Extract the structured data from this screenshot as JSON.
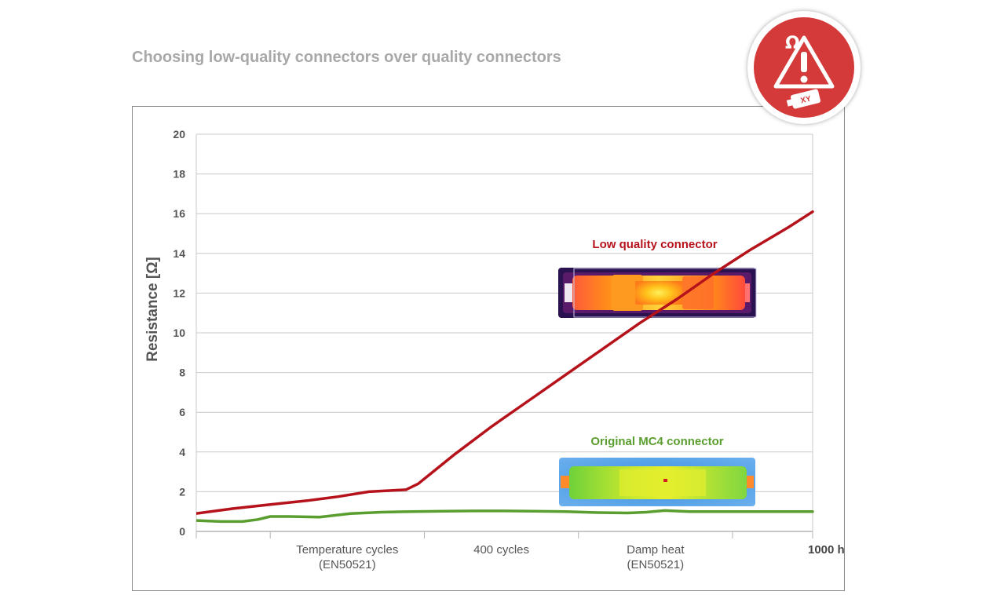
{
  "title": "Choosing low-quality connectors over quality connectors",
  "badge": {
    "icon": "connector-warning-icon",
    "label": "XY",
    "color": "#d43a3a"
  },
  "chart_data": {
    "type": "line",
    "ylabel": "Resistance [Ω]",
    "ylim": [
      0,
      20
    ],
    "yticks": [
      0,
      2,
      4,
      6,
      8,
      10,
      12,
      14,
      16,
      18,
      20
    ],
    "xlim": [
      0,
      1000
    ],
    "x_ticks": [
      0,
      120,
      370,
      620,
      870,
      1000
    ],
    "x_labels": [
      {
        "x": 245,
        "lines": [
          "Temperature cycles",
          "(EN50521)"
        ]
      },
      {
        "x": 495,
        "lines": [
          "400 cycles"
        ]
      },
      {
        "x": 745,
        "lines": [
          "Damp heat",
          "(EN50521)"
        ]
      },
      {
        "x": 1000,
        "lines": [
          "1000 h"
        ],
        "bold": true
      }
    ],
    "grid": true,
    "series": [
      {
        "name": "Low quality connector",
        "color": "#b5121b",
        "x": [
          0,
          60,
          120,
          180,
          230,
          280,
          310,
          340,
          360,
          380,
          420,
          480,
          540,
          600,
          660,
          720,
          780,
          840,
          900,
          960,
          1000
        ],
        "y": [
          0.9,
          1.15,
          1.35,
          1.55,
          1.75,
          2.0,
          2.05,
          2.1,
          2.4,
          2.9,
          3.9,
          5.3,
          6.6,
          7.9,
          9.2,
          10.5,
          11.7,
          13.0,
          14.2,
          15.3,
          16.1
        ]
      },
      {
        "name": "Original MC4 connector",
        "color": "#5a9e2f",
        "x": [
          0,
          40,
          75,
          100,
          120,
          150,
          200,
          250,
          300,
          350,
          400,
          450,
          500,
          550,
          600,
          650,
          700,
          730,
          760,
          800,
          850,
          900,
          950,
          1000
        ],
        "y": [
          0.55,
          0.5,
          0.5,
          0.6,
          0.75,
          0.75,
          0.72,
          0.9,
          0.97,
          1.0,
          1.02,
          1.03,
          1.03,
          1.02,
          1.0,
          0.95,
          0.93,
          0.97,
          1.05,
          1.0,
          1.0,
          1.0,
          1.0,
          1.0
        ]
      }
    ],
    "annotations": [
      {
        "text": "Low quality connector",
        "color": "#b5121b"
      },
      {
        "text": "Original MC4 connector",
        "color": "#5a9e2f"
      }
    ]
  }
}
